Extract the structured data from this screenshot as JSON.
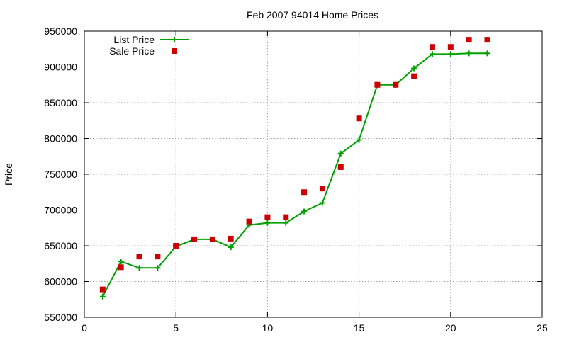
{
  "chart_data": {
    "type": "line",
    "title": "Feb 2007 94014 Home Prices",
    "xlabel": "",
    "ylabel": "Price",
    "xlim": [
      0,
      25
    ],
    "ylim": [
      550000,
      950000
    ],
    "x_ticks": [
      0,
      5,
      10,
      15,
      20,
      25
    ],
    "y_ticks": [
      550000,
      600000,
      650000,
      700000,
      750000,
      800000,
      850000,
      900000,
      950000
    ],
    "grid": true,
    "legend_position": "top-left",
    "series": [
      {
        "name": "List Price",
        "style": "line-with-plus-markers",
        "color": "#00a000",
        "x": [
          1,
          2,
          3,
          4,
          5,
          6,
          7,
          8,
          9,
          10,
          11,
          12,
          13,
          14,
          15,
          16,
          17,
          18,
          19,
          20,
          21,
          22
        ],
        "y": [
          579000,
          628000,
          619000,
          619000,
          649000,
          659000,
          659000,
          648000,
          679000,
          682000,
          682000,
          698000,
          710000,
          779000,
          798000,
          875000,
          875000,
          898000,
          918000,
          918000,
          919000,
          919000
        ]
      },
      {
        "name": "Sale Price",
        "style": "square-markers",
        "color": "#cc0000",
        "x": [
          1,
          2,
          3,
          4,
          5,
          6,
          7,
          8,
          9,
          10,
          11,
          12,
          13,
          14,
          15,
          16,
          17,
          18,
          19,
          20,
          21,
          22
        ],
        "y": [
          589000,
          620000,
          635000,
          635000,
          650000,
          659000,
          659000,
          660000,
          684000,
          690000,
          690000,
          725000,
          730000,
          760000,
          828000,
          875000,
          875000,
          887000,
          928000,
          928000,
          938000,
          938000
        ]
      }
    ]
  }
}
